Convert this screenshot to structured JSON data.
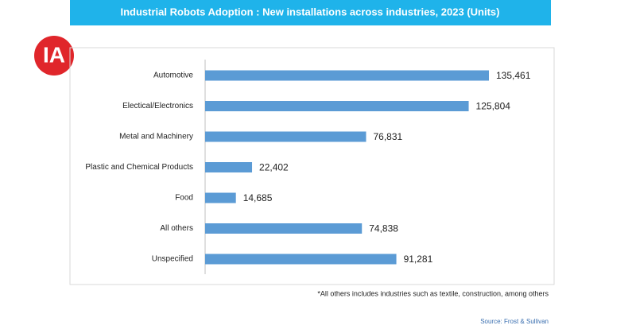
{
  "logo": "IA",
  "chart_data": {
    "type": "hbar",
    "title": "Industrial Robots Adoption : New installations across industries, 2023 (Units)",
    "categories": [
      "Automotive",
      "Electical/Electronics",
      "Metal and Machinery",
      "Plastic and Chemical Products",
      "Food",
      "All others",
      "Unspecified"
    ],
    "values": [
      135461,
      125804,
      76831,
      22402,
      14685,
      74838,
      91281
    ],
    "value_labels": [
      "135,461",
      "125,804",
      "76,831",
      "22,402",
      "14,685",
      "74,838",
      "91,281"
    ],
    "color": "#5b9bd5",
    "note": "*All others includes industries such as textile, construction, among others",
    "source": "Source: Frost & Sullivan"
  }
}
